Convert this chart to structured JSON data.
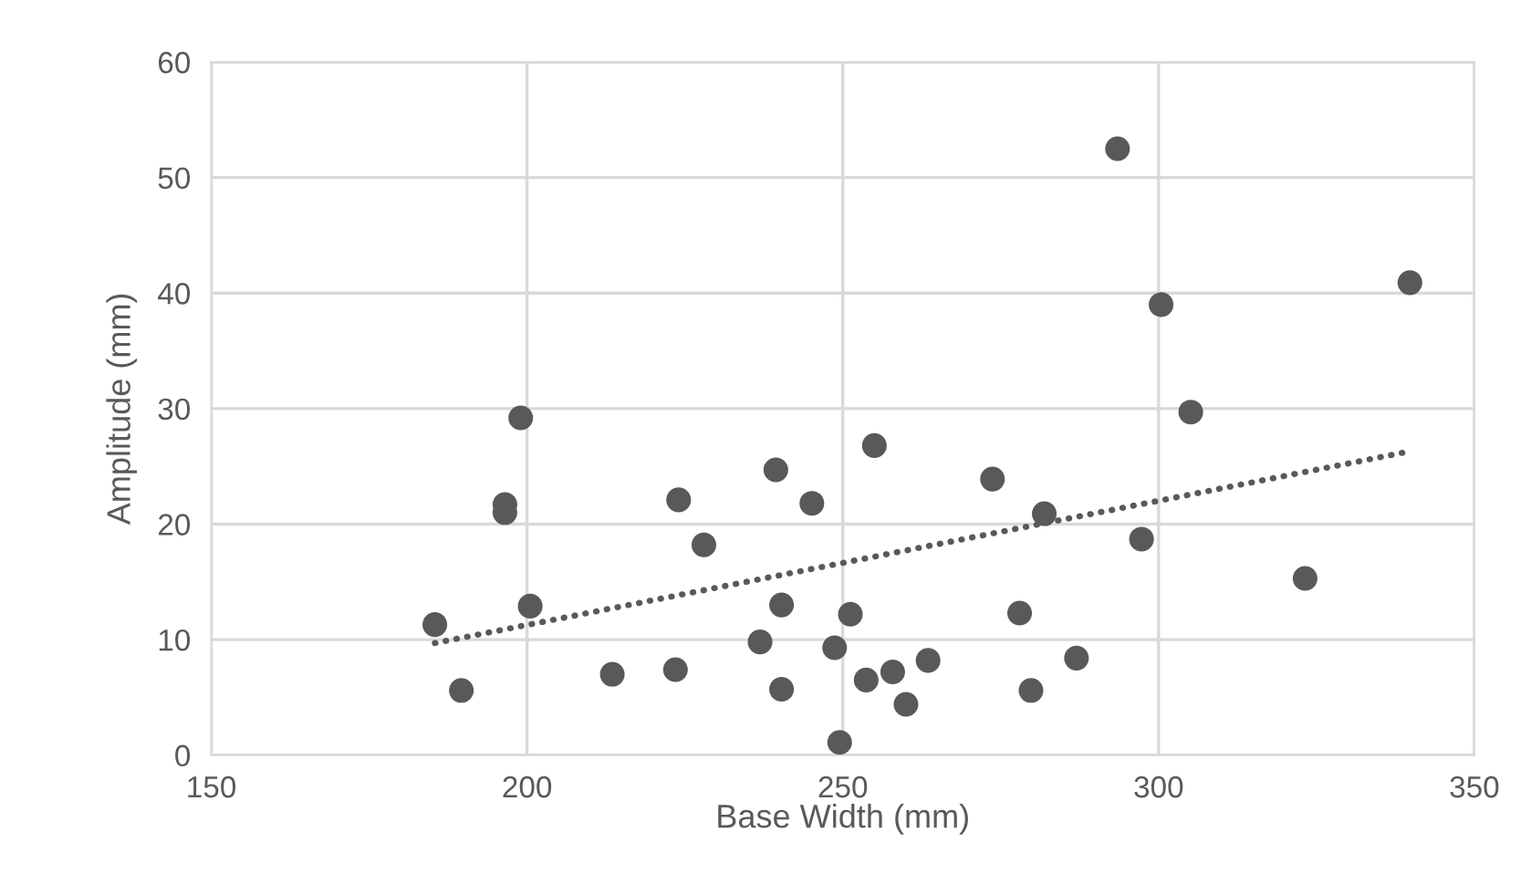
{
  "chart_data": {
    "type": "scatter",
    "xlabel": "Base Width (mm)",
    "ylabel": "Amplitude (mm)",
    "xlim": [
      150,
      350
    ],
    "xticks": [
      150,
      200,
      250,
      300,
      350
    ],
    "ylim": [
      0,
      60
    ],
    "yticks": [
      0,
      10,
      20,
      30,
      40,
      50,
      60
    ],
    "grid": true,
    "marker": "circle",
    "series": [
      {
        "color": "#595959",
        "x": [
          185.4,
          189.6,
          196.5,
          196.5,
          199,
          200.5,
          213.5,
          223.5,
          224,
          228,
          236.9,
          239.4,
          240.3,
          240.3,
          245.1,
          248.7,
          249.5,
          251.2,
          255,
          253.7,
          257.9,
          260,
          263.5,
          273.7,
          278,
          279.8,
          281.9,
          287,
          293.5,
          297.3,
          300.4,
          305.1,
          323.2,
          339.8
        ],
        "values": [
          11.3,
          5.6,
          21.7,
          21,
          29.2,
          12.9,
          7,
          7.4,
          22.1,
          18.2,
          9.8,
          24.7,
          13,
          5.7,
          21.8,
          9.3,
          1.1,
          12.2,
          26.8,
          6.5,
          7.2,
          4.4,
          8.2,
          23.9,
          12.3,
          5.6,
          20.9,
          8.4,
          52.5,
          18.7,
          39,
          29.7,
          15.3,
          40.9
        ]
      },
      {
        "type": "line",
        "color": "#595959",
        "line_style": "dotted",
        "marker": "none",
        "x": [
          185.4,
          339.8
        ],
        "values": [
          9.7,
          26.3
        ]
      }
    ]
  }
}
